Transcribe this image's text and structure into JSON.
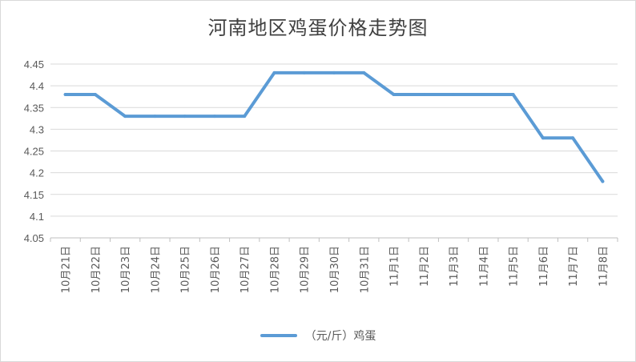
{
  "chart_data": {
    "type": "line",
    "title": "河南地区鸡蛋价格走势图",
    "categories": [
      "10月21日",
      "10月22日",
      "10月23日",
      "10月24日",
      "10月25日",
      "10月26日",
      "10月27日",
      "10月28日",
      "10月29日",
      "10月30日",
      "10月31日",
      "11月1日",
      "11月2日",
      "11月3日",
      "11月4日",
      "11月5日",
      "11月6日",
      "11月7日",
      "11月8日"
    ],
    "series": [
      {
        "name": "（元/斤）鸡蛋",
        "values": [
          4.38,
          4.38,
          4.33,
          4.33,
          4.33,
          4.33,
          4.33,
          4.43,
          4.43,
          4.43,
          4.43,
          4.38,
          4.38,
          4.38,
          4.38,
          4.38,
          4.28,
          4.28,
          4.18
        ]
      }
    ],
    "ylim": [
      4.05,
      4.45
    ],
    "yticks": [
      "4.05",
      "4.1",
      "4.15",
      "4.2",
      "4.25",
      "4.3",
      "4.35",
      "4.4",
      "4.45"
    ],
    "grid": true,
    "legend": "bottom",
    "color": "#5b9bd5"
  }
}
